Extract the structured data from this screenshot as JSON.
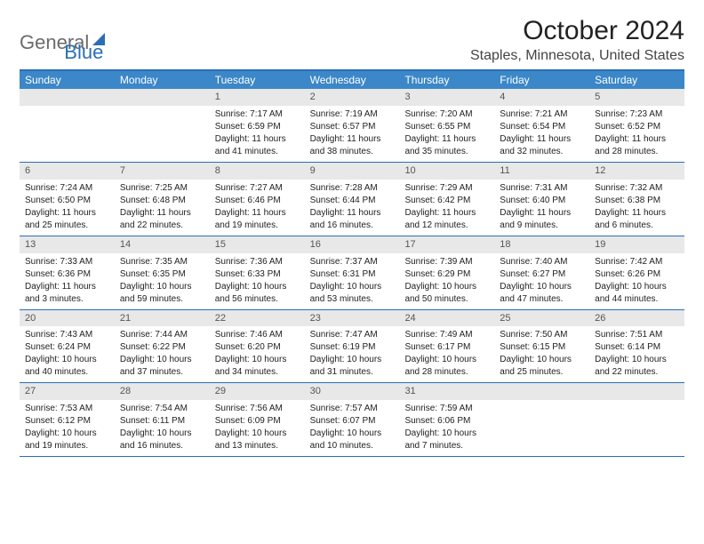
{
  "logo": {
    "part1": "General",
    "part2": "Blue"
  },
  "title": "October 2024",
  "location": "Staples, Minnesota, United States",
  "colors": {
    "header_bg": "#3b87c8",
    "header_text": "#ffffff",
    "rule": "#2a6fb5",
    "daynum_bg": "#e8e8e8",
    "daynum_text": "#555555",
    "body_text": "#222222",
    "logo_gray": "#6b6b6b",
    "logo_blue": "#2a6fb5"
  },
  "dow": [
    "Sunday",
    "Monday",
    "Tuesday",
    "Wednesday",
    "Thursday",
    "Friday",
    "Saturday"
  ],
  "weeks": [
    [
      null,
      null,
      {
        "n": "1",
        "sr": "Sunrise: 7:17 AM",
        "ss": "Sunset: 6:59 PM",
        "dl1": "Daylight: 11 hours",
        "dl2": "and 41 minutes."
      },
      {
        "n": "2",
        "sr": "Sunrise: 7:19 AM",
        "ss": "Sunset: 6:57 PM",
        "dl1": "Daylight: 11 hours",
        "dl2": "and 38 minutes."
      },
      {
        "n": "3",
        "sr": "Sunrise: 7:20 AM",
        "ss": "Sunset: 6:55 PM",
        "dl1": "Daylight: 11 hours",
        "dl2": "and 35 minutes."
      },
      {
        "n": "4",
        "sr": "Sunrise: 7:21 AM",
        "ss": "Sunset: 6:54 PM",
        "dl1": "Daylight: 11 hours",
        "dl2": "and 32 minutes."
      },
      {
        "n": "5",
        "sr": "Sunrise: 7:23 AM",
        "ss": "Sunset: 6:52 PM",
        "dl1": "Daylight: 11 hours",
        "dl2": "and 28 minutes."
      }
    ],
    [
      {
        "n": "6",
        "sr": "Sunrise: 7:24 AM",
        "ss": "Sunset: 6:50 PM",
        "dl1": "Daylight: 11 hours",
        "dl2": "and 25 minutes."
      },
      {
        "n": "7",
        "sr": "Sunrise: 7:25 AM",
        "ss": "Sunset: 6:48 PM",
        "dl1": "Daylight: 11 hours",
        "dl2": "and 22 minutes."
      },
      {
        "n": "8",
        "sr": "Sunrise: 7:27 AM",
        "ss": "Sunset: 6:46 PM",
        "dl1": "Daylight: 11 hours",
        "dl2": "and 19 minutes."
      },
      {
        "n": "9",
        "sr": "Sunrise: 7:28 AM",
        "ss": "Sunset: 6:44 PM",
        "dl1": "Daylight: 11 hours",
        "dl2": "and 16 minutes."
      },
      {
        "n": "10",
        "sr": "Sunrise: 7:29 AM",
        "ss": "Sunset: 6:42 PM",
        "dl1": "Daylight: 11 hours",
        "dl2": "and 12 minutes."
      },
      {
        "n": "11",
        "sr": "Sunrise: 7:31 AM",
        "ss": "Sunset: 6:40 PM",
        "dl1": "Daylight: 11 hours",
        "dl2": "and 9 minutes."
      },
      {
        "n": "12",
        "sr": "Sunrise: 7:32 AM",
        "ss": "Sunset: 6:38 PM",
        "dl1": "Daylight: 11 hours",
        "dl2": "and 6 minutes."
      }
    ],
    [
      {
        "n": "13",
        "sr": "Sunrise: 7:33 AM",
        "ss": "Sunset: 6:36 PM",
        "dl1": "Daylight: 11 hours",
        "dl2": "and 3 minutes."
      },
      {
        "n": "14",
        "sr": "Sunrise: 7:35 AM",
        "ss": "Sunset: 6:35 PM",
        "dl1": "Daylight: 10 hours",
        "dl2": "and 59 minutes."
      },
      {
        "n": "15",
        "sr": "Sunrise: 7:36 AM",
        "ss": "Sunset: 6:33 PM",
        "dl1": "Daylight: 10 hours",
        "dl2": "and 56 minutes."
      },
      {
        "n": "16",
        "sr": "Sunrise: 7:37 AM",
        "ss": "Sunset: 6:31 PM",
        "dl1": "Daylight: 10 hours",
        "dl2": "and 53 minutes."
      },
      {
        "n": "17",
        "sr": "Sunrise: 7:39 AM",
        "ss": "Sunset: 6:29 PM",
        "dl1": "Daylight: 10 hours",
        "dl2": "and 50 minutes."
      },
      {
        "n": "18",
        "sr": "Sunrise: 7:40 AM",
        "ss": "Sunset: 6:27 PM",
        "dl1": "Daylight: 10 hours",
        "dl2": "and 47 minutes."
      },
      {
        "n": "19",
        "sr": "Sunrise: 7:42 AM",
        "ss": "Sunset: 6:26 PM",
        "dl1": "Daylight: 10 hours",
        "dl2": "and 44 minutes."
      }
    ],
    [
      {
        "n": "20",
        "sr": "Sunrise: 7:43 AM",
        "ss": "Sunset: 6:24 PM",
        "dl1": "Daylight: 10 hours",
        "dl2": "and 40 minutes."
      },
      {
        "n": "21",
        "sr": "Sunrise: 7:44 AM",
        "ss": "Sunset: 6:22 PM",
        "dl1": "Daylight: 10 hours",
        "dl2": "and 37 minutes."
      },
      {
        "n": "22",
        "sr": "Sunrise: 7:46 AM",
        "ss": "Sunset: 6:20 PM",
        "dl1": "Daylight: 10 hours",
        "dl2": "and 34 minutes."
      },
      {
        "n": "23",
        "sr": "Sunrise: 7:47 AM",
        "ss": "Sunset: 6:19 PM",
        "dl1": "Daylight: 10 hours",
        "dl2": "and 31 minutes."
      },
      {
        "n": "24",
        "sr": "Sunrise: 7:49 AM",
        "ss": "Sunset: 6:17 PM",
        "dl1": "Daylight: 10 hours",
        "dl2": "and 28 minutes."
      },
      {
        "n": "25",
        "sr": "Sunrise: 7:50 AM",
        "ss": "Sunset: 6:15 PM",
        "dl1": "Daylight: 10 hours",
        "dl2": "and 25 minutes."
      },
      {
        "n": "26",
        "sr": "Sunrise: 7:51 AM",
        "ss": "Sunset: 6:14 PM",
        "dl1": "Daylight: 10 hours",
        "dl2": "and 22 minutes."
      }
    ],
    [
      {
        "n": "27",
        "sr": "Sunrise: 7:53 AM",
        "ss": "Sunset: 6:12 PM",
        "dl1": "Daylight: 10 hours",
        "dl2": "and 19 minutes."
      },
      {
        "n": "28",
        "sr": "Sunrise: 7:54 AM",
        "ss": "Sunset: 6:11 PM",
        "dl1": "Daylight: 10 hours",
        "dl2": "and 16 minutes."
      },
      {
        "n": "29",
        "sr": "Sunrise: 7:56 AM",
        "ss": "Sunset: 6:09 PM",
        "dl1": "Daylight: 10 hours",
        "dl2": "and 13 minutes."
      },
      {
        "n": "30",
        "sr": "Sunrise: 7:57 AM",
        "ss": "Sunset: 6:07 PM",
        "dl1": "Daylight: 10 hours",
        "dl2": "and 10 minutes."
      },
      {
        "n": "31",
        "sr": "Sunrise: 7:59 AM",
        "ss": "Sunset: 6:06 PM",
        "dl1": "Daylight: 10 hours",
        "dl2": "and 7 minutes."
      },
      null,
      null
    ]
  ]
}
